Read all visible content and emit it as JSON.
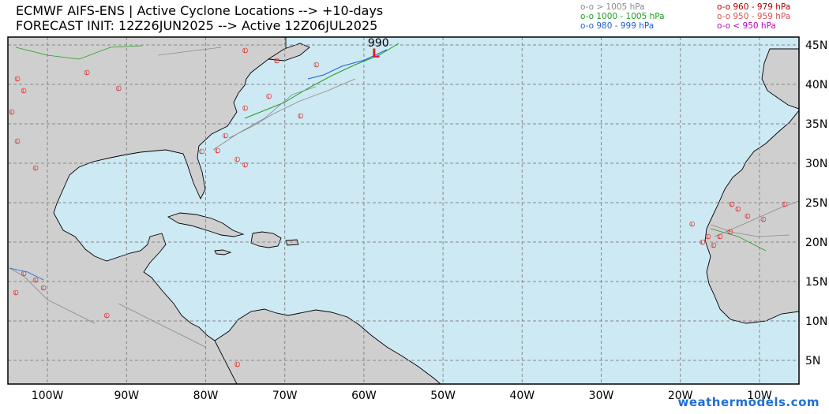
{
  "title": {
    "line1": "ECMWF AIFS-ENS | Active Cyclone Locations --> +10-days",
    "line2": "FORECAST INIT: 12Z26JUN2025 --> Active 12Z06JUL2025"
  },
  "legend": {
    "left": [
      {
        "marker": "o-o",
        "label": "> 1005 hPa",
        "color": "#8a8a8a"
      },
      {
        "marker": "o-o",
        "label": "1000 - 1005 hPa",
        "color": "#1fa01f"
      },
      {
        "marker": "o-o",
        "label": "980 - 999 hPa",
        "color": "#1f5fd6"
      }
    ],
    "right": [
      {
        "marker": "o-o",
        "label": "960 - 979 hPa",
        "color": "#b00000"
      },
      {
        "marker": "o-o",
        "label": "950 - 959 hPa",
        "color": "#e05050"
      },
      {
        "marker": "o-o",
        "label": "< 950 hPa",
        "color": "#c000c0"
      }
    ]
  },
  "axes": {
    "lon_labels": [
      "100W",
      "90W",
      "80W",
      "70W",
      "60W",
      "50W",
      "40W",
      "30W",
      "20W",
      "10W"
    ],
    "lon_values": [
      -100,
      -90,
      -80,
      -70,
      -60,
      -50,
      -40,
      -30,
      -20,
      -10
    ],
    "lat_labels": [
      "45N",
      "40N",
      "35N",
      "30N",
      "25N",
      "20N",
      "15N",
      "10N",
      "5N"
    ],
    "lat_values": [
      45,
      40,
      35,
      30,
      25,
      20,
      15,
      10,
      5
    ],
    "lon_range": [
      -105,
      -5
    ],
    "lat_range": [
      2,
      46
    ]
  },
  "pressure_annotation": "990",
  "credit": "weathermodels.com",
  "colors": {
    "ocean": "#cde9f3",
    "land": "#cfcfcf",
    "grid": "#888888",
    "track_grey": "#8a8a8a",
    "track_green": "#1fa01f",
    "track_blue": "#1f5fd6",
    "low_marker": "#e02020"
  },
  "strongest_center": {
    "lon": -58.5,
    "lat": 44.0
  }
}
